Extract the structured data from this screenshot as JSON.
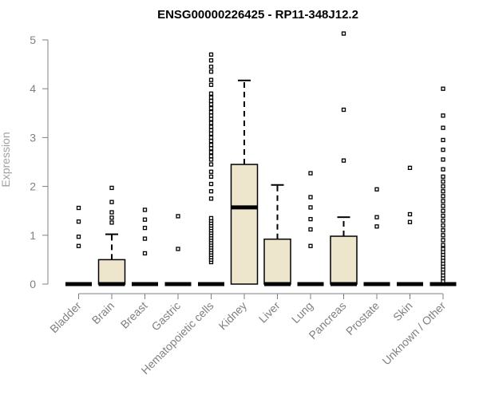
{
  "chart_data": {
    "type": "boxplot",
    "title": "ENSG00000226425 - RP11-348J12.2",
    "ylabel": "Expression",
    "xlabel": "",
    "ylim": [
      0,
      5
    ],
    "yticks": [
      0,
      1,
      2,
      3,
      4,
      5
    ],
    "grid": false,
    "colors": {
      "box_fill": "#ede6cc",
      "box_stroke": "#000000",
      "axis": "#808080",
      "text": "#808080"
    },
    "categories": [
      "Bladder",
      "Brain",
      "Breast",
      "Gastric",
      "Hematopoietic cells",
      "Kidney",
      "Liver",
      "Lung",
      "Pancreas",
      "Prostate",
      "Skin",
      "Unknown / Other"
    ],
    "boxes": [
      {
        "category": "Bladder",
        "q1": 0,
        "median": 0,
        "q3": 0,
        "whisker_low": 0,
        "whisker_high": 0,
        "outliers": [
          0.78,
          0.97,
          1.28,
          1.56
        ]
      },
      {
        "category": "Brain",
        "q1": 0,
        "median": 0,
        "q3": 0.5,
        "whisker_low": 0,
        "whisker_high": 1.02,
        "outliers": [
          1.26,
          1.36,
          1.47,
          1.68,
          1.97
        ]
      },
      {
        "category": "Breast",
        "q1": 0,
        "median": 0,
        "q3": 0,
        "whisker_low": 0,
        "whisker_high": 0,
        "outliers": [
          0.63,
          0.93,
          1.15,
          1.32,
          1.52
        ]
      },
      {
        "category": "Gastric",
        "q1": 0,
        "median": 0,
        "q3": 0,
        "whisker_low": 0,
        "whisker_high": 0,
        "outliers": [
          0.72,
          1.39
        ]
      },
      {
        "category": "Hematopoietic cells",
        "q1": 0,
        "median": 0,
        "q3": 0,
        "whisker_low": 0,
        "whisker_high": 0,
        "outliers": [
          0.45,
          0.5,
          0.55,
          0.6,
          0.65,
          0.7,
          0.75,
          0.8,
          0.85,
          0.9,
          0.95,
          1.0,
          1.05,
          1.1,
          1.15,
          1.2,
          1.25,
          1.3,
          1.35,
          1.75,
          1.9,
          2.05,
          2.2,
          2.3,
          2.45,
          2.55,
          2.62,
          2.7,
          2.78,
          2.85,
          2.93,
          3.0,
          3.08,
          3.15,
          3.22,
          3.3,
          3.38,
          3.45,
          3.52,
          3.6,
          3.68,
          3.75,
          3.82,
          3.9,
          4.08,
          4.18,
          4.35,
          4.45,
          4.58,
          4.7
        ]
      },
      {
        "category": "Kidney",
        "q1": 0,
        "median": 1.57,
        "q3": 2.45,
        "whisker_low": 0,
        "whisker_high": 4.17,
        "outliers": []
      },
      {
        "category": "Liver",
        "q1": 0,
        "median": 0,
        "q3": 0.92,
        "whisker_low": 0,
        "whisker_high": 2.03,
        "outliers": []
      },
      {
        "category": "Lung",
        "q1": 0,
        "median": 0,
        "q3": 0,
        "whisker_low": 0,
        "whisker_high": 0,
        "outliers": [
          0.78,
          1.12,
          1.33,
          1.57,
          1.78,
          2.27
        ]
      },
      {
        "category": "Pancreas",
        "q1": 0,
        "median": 0,
        "q3": 0.98,
        "whisker_low": 0,
        "whisker_high": 1.37,
        "outliers": [
          2.53,
          3.57,
          5.13
        ]
      },
      {
        "category": "Prostate",
        "q1": 0,
        "median": 0,
        "q3": 0,
        "whisker_low": 0,
        "whisker_high": 0,
        "outliers": [
          1.18,
          1.37,
          1.94
        ]
      },
      {
        "category": "Skin",
        "q1": 0,
        "median": 0,
        "q3": 0,
        "whisker_low": 0,
        "whisker_high": 0,
        "outliers": [
          1.27,
          1.43,
          2.38
        ]
      },
      {
        "category": "Unknown / Other",
        "q1": 0,
        "median": 0,
        "q3": 0,
        "whisker_low": 0,
        "whisker_high": 0,
        "outliers": [
          0.06,
          0.12,
          0.18,
          0.24,
          0.3,
          0.36,
          0.42,
          0.48,
          0.54,
          0.6,
          0.66,
          0.72,
          0.8,
          0.9,
          1.0,
          1.1,
          1.2,
          1.3,
          1.4,
          1.5,
          1.6,
          1.7,
          1.8,
          1.9,
          2.0,
          2.1,
          2.2,
          2.35,
          2.55,
          2.75,
          2.95,
          3.2,
          3.45,
          4.0
        ]
      }
    ]
  }
}
